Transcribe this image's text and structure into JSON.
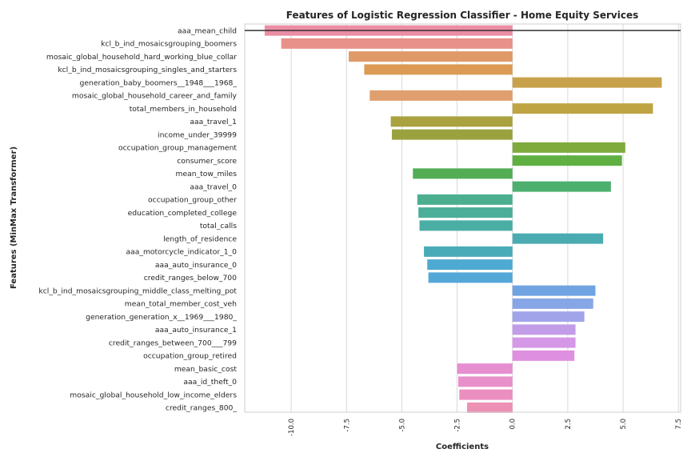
{
  "chart_data": {
    "type": "bar",
    "orientation": "horizontal",
    "title": "Features of Logistic Regression Classifier - Home Equity Services",
    "xlabel": "Coefficients",
    "ylabel": "Features (MinMax Transformer)",
    "xlim": [
      -12.1,
      7.6
    ],
    "xticks": [
      {
        "value": -10.0,
        "label": "-10.0"
      },
      {
        "value": -7.5,
        "label": "-7.5"
      },
      {
        "value": -5.0,
        "label": "-5.0"
      },
      {
        "value": -2.5,
        "label": "-2.5"
      },
      {
        "value": 0.0,
        "label": "0.0"
      },
      {
        "value": 2.5,
        "label": "2.5"
      },
      {
        "value": 5.0,
        "label": "5.0"
      },
      {
        "value": 7.5,
        "label": "7.5"
      }
    ],
    "grid": true,
    "categories": [
      "aaa_mean_child",
      "kcl_b_ind_mosaicsgrouping_boomers",
      "mosaic_global_household_hard_working_blue_collar",
      "kcl_b_ind_mosaicsgrouping_singles_and_starters",
      "generation_baby_boomers__1948___1968_",
      "mosaic_global_household_career_and_family",
      "total_members_in_household",
      "aaa_travel_1",
      "income_under_39999",
      "occupation_group_management",
      "consumer_score",
      "mean_tow_miles",
      "aaa_travel_0",
      "occupation_group_other",
      "education_completed_college",
      "total_calls",
      "length_of_residence",
      "aaa_motorcycle_indicator_1_0",
      "aaa_auto_insurance_0",
      "credit_ranges_below_700",
      "kcl_b_ind_mosaicsgrouping_middle_class_melting_pot",
      "mean_total_member_cost_veh",
      "generation_generation_x__1969___1980_",
      "aaa_auto_insurance_1",
      "credit_ranges_between_700___799",
      "occupation_group_retired",
      "mean_basic_cost",
      "aaa_id_theft_0",
      "mosaic_global_household_low_income_elders",
      "credit_ranges_800_"
    ],
    "values": [
      -11.2,
      -10.45,
      -7.4,
      -6.7,
      6.75,
      -6.45,
      6.35,
      -5.5,
      -5.45,
      5.1,
      4.95,
      -4.5,
      4.45,
      -4.3,
      -4.25,
      -4.2,
      4.1,
      -4.0,
      -3.85,
      -3.8,
      3.75,
      3.65,
      3.25,
      2.85,
      2.85,
      2.8,
      -2.5,
      -2.45,
      -2.4,
      -2.05
    ],
    "colors": [
      "#ea8da5",
      "#e8918a",
      "#e09a69",
      "#dc9a55",
      "#c8a24a",
      "#e09f6e",
      "#bfa444",
      "#a9a23f",
      "#9aa23f",
      "#7fab3c",
      "#5fb041",
      "#52ad55",
      "#4caf6e",
      "#4baf8f",
      "#4aae98",
      "#4aaea4",
      "#4aacb0",
      "#4aabb8",
      "#4eaad0",
      "#54a8d8",
      "#6fa3e2",
      "#87a6e6",
      "#a2a4ea",
      "#c39ce8",
      "#d498e6",
      "#de8fdf",
      "#e58fd0",
      "#e890c9",
      "#ea8fbf",
      "#ec91b4"
    ],
    "reference_line": {
      "y_index": 0,
      "color": "#333333"
    }
  }
}
